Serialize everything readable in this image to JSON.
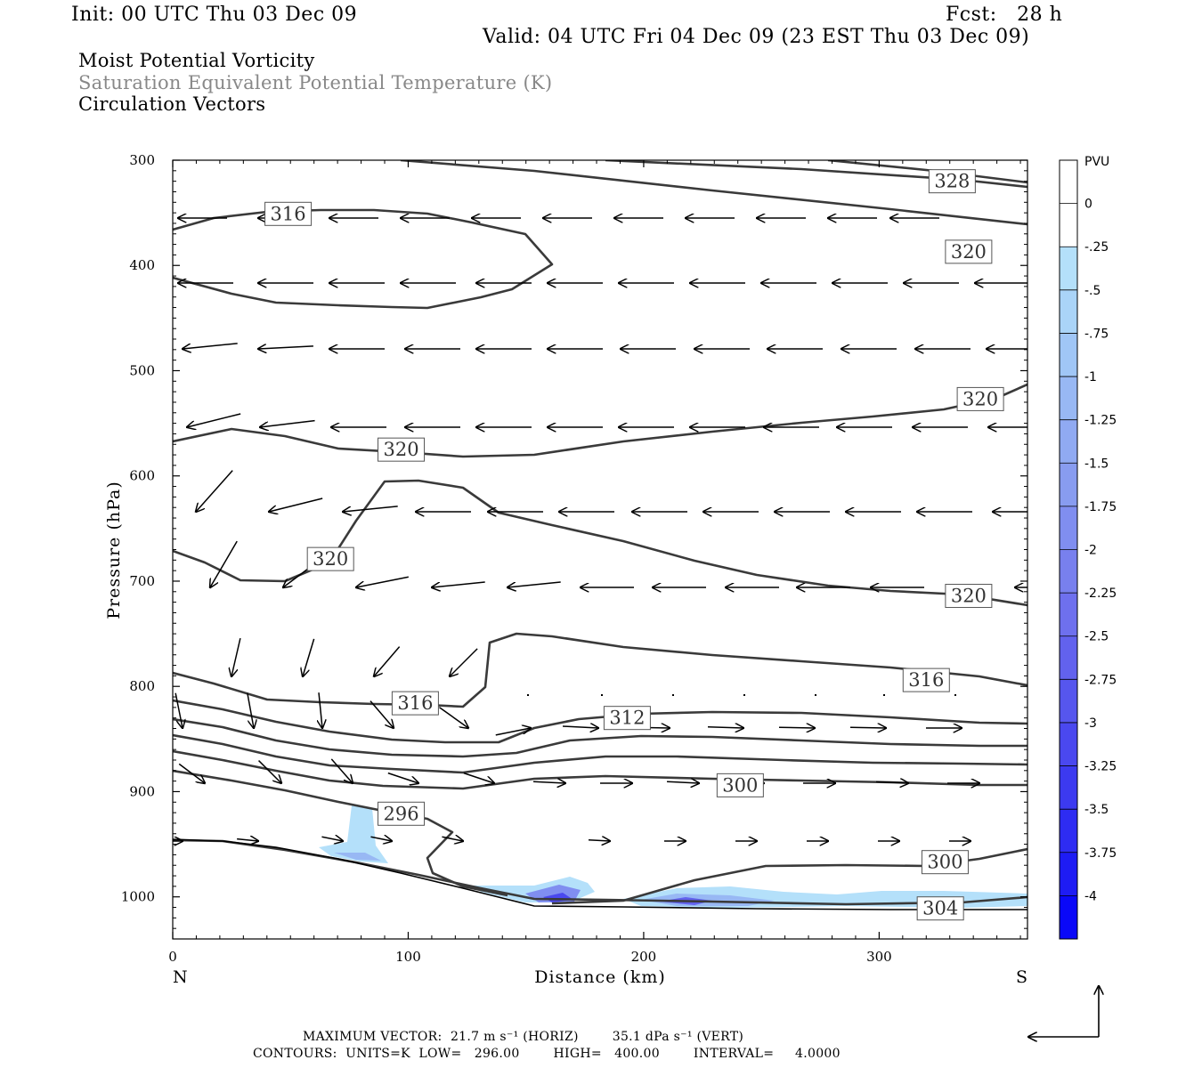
{
  "header": {
    "init": "Init: 00 UTC Thu 03 Dec 09",
    "fcst": "Fcst:   28 h",
    "valid": "Valid: 04 UTC Fri 04 Dec 09 (23 EST Thu 03 Dec 09)",
    "field1": "Moist Potential Vorticity",
    "field2": "Saturation Equivalent Potential Temperature (K)",
    "field3": "Circulation Vectors"
  },
  "footer": {
    "vector": "MAXIMUM VECTOR:  21.7 m s⁻¹ (HORIZ)        35.1 dPa s⁻¹ (VERT)",
    "contours": "CONTOURS:  UNITS=K  LOW=   296.00        HIGH=   400.00        INTERVAL=     4.0000"
  },
  "chart_data": {
    "type": "contour-cross-section",
    "xlabel": "Distance (km)",
    "ylabel": "Pressure (hPa)",
    "xlim": [
      0,
      363
    ],
    "ylim": [
      1040,
      300
    ],
    "x_ticks": [
      "0",
      "100",
      "200",
      "300"
    ],
    "x_tick_values": [
      0,
      100,
      200,
      300
    ],
    "y_ticks": [
      "300",
      "400",
      "500",
      "600",
      "700",
      "800",
      "900",
      "1000"
    ],
    "y_tick_values": [
      300,
      400,
      500,
      600,
      700,
      800,
      900,
      1000
    ],
    "left_end": "N",
    "right_end": "S",
    "colorbar": {
      "unit": "PVU",
      "labels": [
        "0",
        "-.25",
        "-.5",
        "-.75",
        "-1",
        "-1.25",
        "-1.5",
        "-1.75",
        "-2",
        "-2.25",
        "-2.5",
        "-2.75",
        "-3",
        "-3.25",
        "-3.5",
        "-3.75",
        "-4"
      ],
      "colors": [
        "#ffffff",
        "#ffffff",
        "#b4e0fa",
        "#aad4f8",
        "#a0c6f6",
        "#98b8f4",
        "#90aaf2",
        "#889cf0",
        "#808ef0",
        "#7880ee",
        "#6e70ee",
        "#6262ee",
        "#5656ee",
        "#4a48ef",
        "#3c3af0",
        "#2e2cf2",
        "#1e1cf4",
        "#0a08f8"
      ]
    },
    "contour_labels": [
      {
        "text": "328",
        "d": 331,
        "p": 320
      },
      {
        "text": "316",
        "d": 49,
        "p": 351
      },
      {
        "text": "320",
        "d": 338,
        "p": 387
      },
      {
        "text": "320",
        "d": 343,
        "p": 527
      },
      {
        "text": "320",
        "d": 97,
        "p": 575
      },
      {
        "text": "320",
        "d": 67,
        "p": 679
      },
      {
        "text": "320",
        "d": 338,
        "p": 714
      },
      {
        "text": "316",
        "d": 320,
        "p": 794
      },
      {
        "text": "316",
        "d": 103,
        "p": 816
      },
      {
        "text": "312",
        "d": 193,
        "p": 830
      },
      {
        "text": "300",
        "d": 241,
        "p": 894
      },
      {
        "text": "296",
        "d": 97,
        "p": 921
      },
      {
        "text": "300",
        "d": 328,
        "p": 967
      },
      {
        "text": "304",
        "d": 326,
        "p": 1011
      }
    ]
  }
}
